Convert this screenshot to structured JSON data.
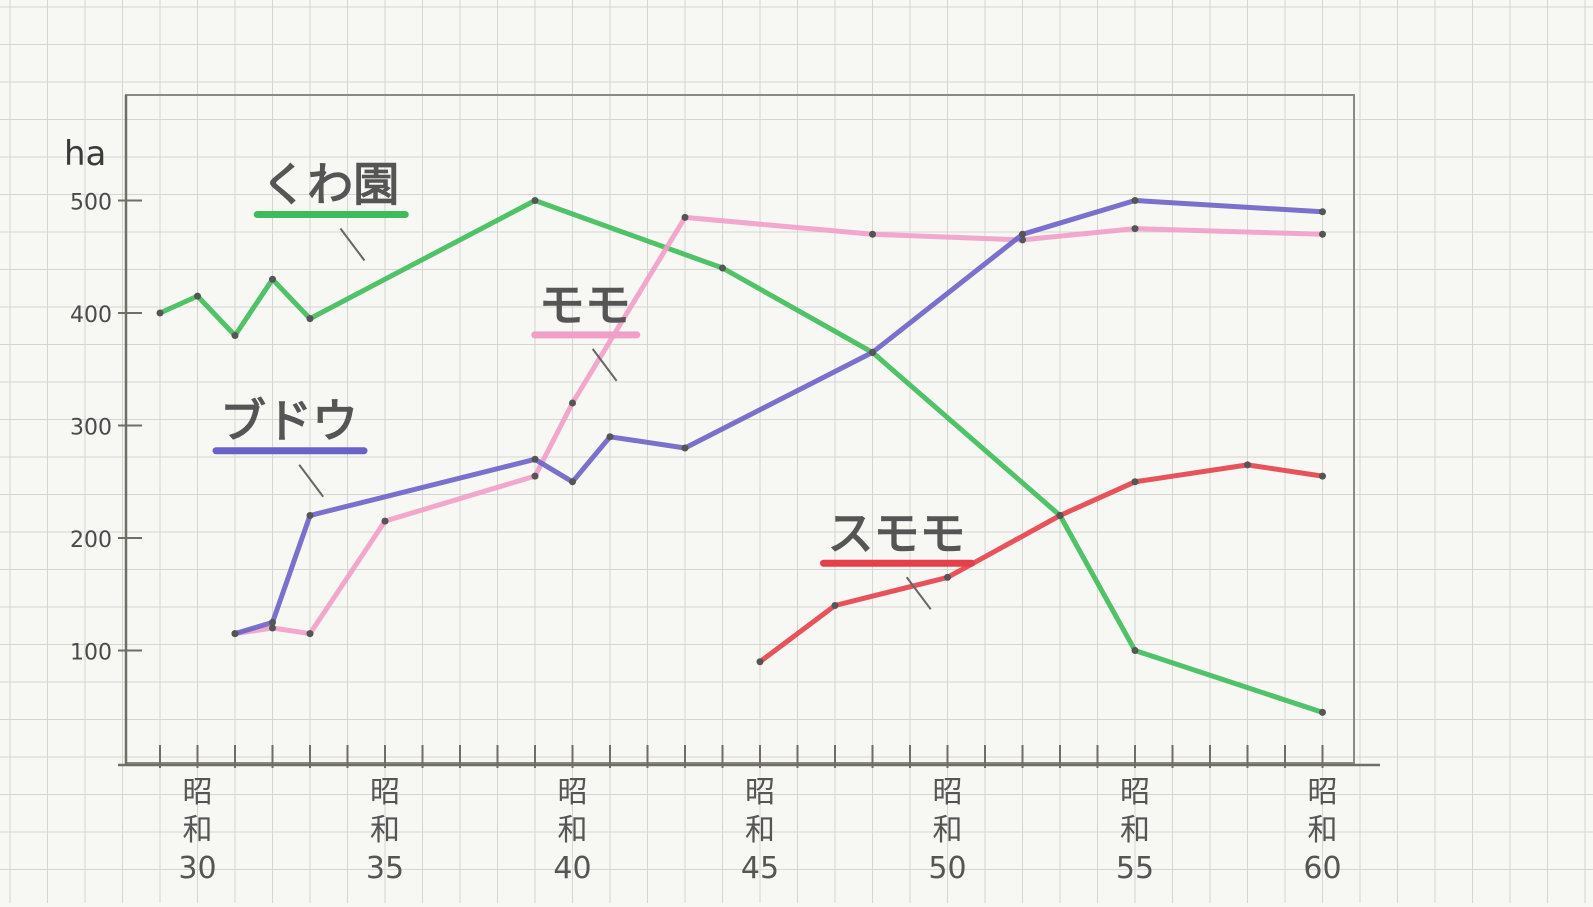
{
  "chart_data": {
    "type": "line",
    "ylabel": "ha",
    "ylim": [
      0,
      550
    ],
    "yticks": [
      100,
      200,
      300,
      400,
      500
    ],
    "xlim": [
      28,
      60
    ],
    "grid": true,
    "x_tick_labels": [
      {
        "x": 30,
        "lines": [
          "昭",
          "和",
          "30"
        ]
      },
      {
        "x": 35,
        "lines": [
          "昭",
          "和",
          "35"
        ]
      },
      {
        "x": 40,
        "lines": [
          "昭",
          "和",
          "40"
        ]
      },
      {
        "x": 45,
        "lines": [
          "昭",
          "和",
          "45"
        ]
      },
      {
        "x": 50,
        "lines": [
          "昭",
          "和",
          "50"
        ]
      },
      {
        "x": 55,
        "lines": [
          "昭",
          "和",
          "55"
        ]
      },
      {
        "x": 60,
        "lines": [
          "昭",
          "和",
          "60"
        ]
      }
    ],
    "series": [
      {
        "name": "くわ園",
        "color": "#3dbd5a",
        "label_x": 31.7,
        "label_y": 500,
        "points": [
          [
            29,
            400
          ],
          [
            30,
            415
          ],
          [
            31,
            380
          ],
          [
            32,
            430
          ],
          [
            33,
            395
          ],
          [
            39,
            500
          ],
          [
            44,
            440
          ],
          [
            48,
            365
          ],
          [
            53,
            220
          ],
          [
            55,
            100
          ],
          [
            60,
            45
          ]
        ]
      },
      {
        "name": "モモ",
        "color": "#f09fc8",
        "label_x": 39.1,
        "label_y": 393,
        "points": [
          [
            31,
            115
          ],
          [
            32,
            120
          ],
          [
            33,
            115
          ],
          [
            35,
            215
          ],
          [
            39,
            255
          ],
          [
            40,
            320
          ],
          [
            43,
            485
          ],
          [
            48,
            470
          ],
          [
            52,
            465
          ],
          [
            55,
            475
          ],
          [
            60,
            470
          ]
        ]
      },
      {
        "name": "ブドウ",
        "color": "#6a62c8",
        "label_x": 30.6,
        "label_y": 290,
        "points": [
          [
            31,
            115
          ],
          [
            32,
            125
          ],
          [
            33,
            220
          ],
          [
            39,
            270
          ],
          [
            40,
            250
          ],
          [
            41,
            290
          ],
          [
            43,
            280
          ],
          [
            48,
            365
          ],
          [
            52,
            470
          ],
          [
            55,
            500
          ],
          [
            60,
            490
          ]
        ]
      },
      {
        "name": "スモモ",
        "color": "#e5404a",
        "label_x": 46.8,
        "label_y": 190,
        "points": [
          [
            45,
            90
          ],
          [
            47,
            140
          ],
          [
            50,
            165
          ],
          [
            53,
            220
          ],
          [
            55,
            250
          ],
          [
            58,
            265
          ],
          [
            60,
            255
          ]
        ]
      }
    ]
  }
}
